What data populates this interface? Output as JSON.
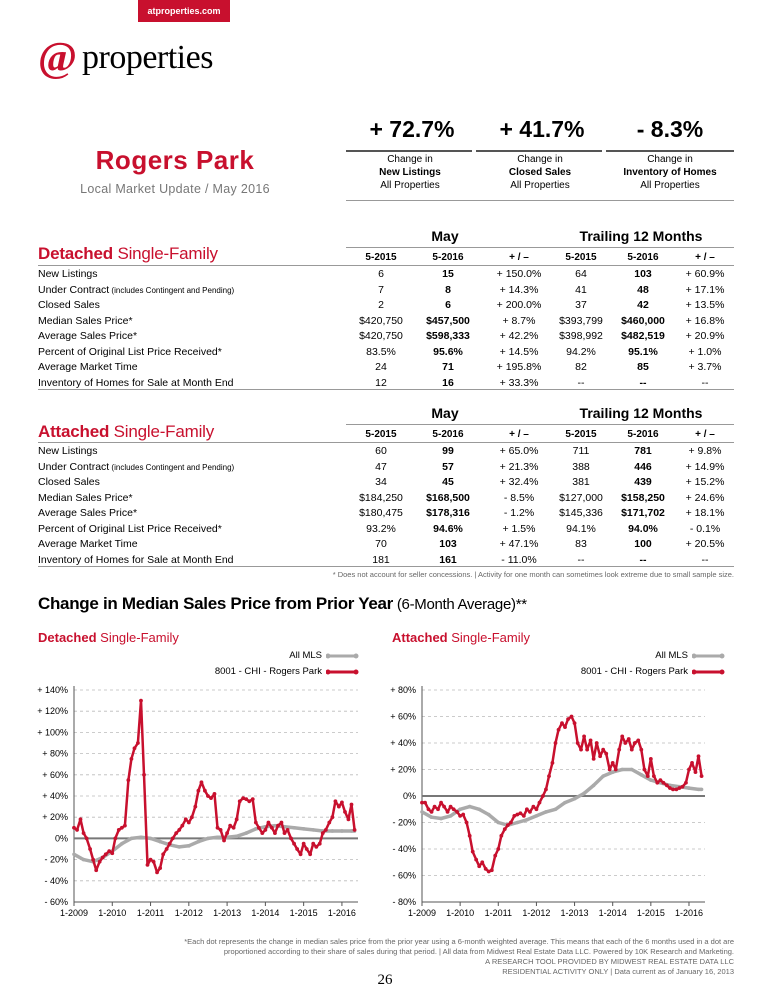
{
  "brand": {
    "site": "atproperties.com",
    "logo_at": "@",
    "logo_word": "properties",
    "red": "#c8102e"
  },
  "area": {
    "title": "Rogers Park",
    "subtitle": "Local Market Update / May 2016"
  },
  "kpis": [
    {
      "value": "+ 72.7%",
      "line1": "Change in",
      "metric": "New Listings",
      "line3": "All Properties"
    },
    {
      "value": "+ 41.7%",
      "line1": "Change in",
      "metric": "Closed Sales",
      "line3": "All Properties"
    },
    {
      "value": "- 8.3%",
      "line1": "Change in",
      "metric": "Inventory of Homes",
      "line3": "All Properties"
    }
  ],
  "groups": {
    "month": "May",
    "trailing": "Trailing 12 Months"
  },
  "columns": [
    "5-2015",
    "5-2016",
    "+ / –",
    "5-2015",
    "5-2016",
    "+ / –"
  ],
  "detached": {
    "title_bold": "Detached",
    "title_rest": " Single-Family",
    "rows": [
      {
        "label": "New Listings",
        "note": "",
        "v": [
          "6",
          "15",
          "+ 150.0%",
          "64",
          "103",
          "+ 60.9%"
        ]
      },
      {
        "label": "Under Contract",
        "note": " (includes Contingent and Pending)",
        "v": [
          "7",
          "8",
          "+ 14.3%",
          "41",
          "48",
          "+ 17.1%"
        ]
      },
      {
        "label": "Closed Sales",
        "note": "",
        "v": [
          "2",
          "6",
          "+ 200.0%",
          "37",
          "42",
          "+ 13.5%"
        ]
      },
      {
        "label": "Median Sales Price*",
        "note": "",
        "v": [
          "$420,750",
          "$457,500",
          "+ 8.7%",
          "$393,799",
          "$460,000",
          "+ 16.8%"
        ]
      },
      {
        "label": "Average Sales Price*",
        "note": "",
        "v": [
          "$420,750",
          "$598,333",
          "+ 42.2%",
          "$398,992",
          "$482,519",
          "+ 20.9%"
        ]
      },
      {
        "label": "Percent of Original List Price Received*",
        "note": "",
        "v": [
          "83.5%",
          "95.6%",
          "+ 14.5%",
          "94.2%",
          "95.1%",
          "+ 1.0%"
        ]
      },
      {
        "label": "Average Market Time",
        "note": "",
        "v": [
          "24",
          "71",
          "+ 195.8%",
          "82",
          "85",
          "+ 3.7%"
        ]
      },
      {
        "label": "Inventory of Homes for Sale at Month End",
        "note": "",
        "v": [
          "12",
          "16",
          "+ 33.3%",
          "--",
          "--",
          "--"
        ]
      }
    ]
  },
  "attached": {
    "title_bold": "Attached",
    "title_rest": " Single-Family",
    "rows": [
      {
        "label": "New Listings",
        "note": "",
        "v": [
          "60",
          "99",
          "+ 65.0%",
          "711",
          "781",
          "+ 9.8%"
        ]
      },
      {
        "label": "Under Contract",
        "note": " (includes Contingent and Pending)",
        "v": [
          "47",
          "57",
          "+ 21.3%",
          "388",
          "446",
          "+ 14.9%"
        ]
      },
      {
        "label": "Closed Sales",
        "note": "",
        "v": [
          "34",
          "45",
          "+ 32.4%",
          "381",
          "439",
          "+ 15.2%"
        ]
      },
      {
        "label": "Median Sales Price*",
        "note": "",
        "v": [
          "$184,250",
          "$168,500",
          "- 8.5%",
          "$127,000",
          "$158,250",
          "+ 24.6%"
        ]
      },
      {
        "label": "Average Sales Price*",
        "note": "",
        "v": [
          "$180,475",
          "$178,316",
          "- 1.2%",
          "$145,336",
          "$171,702",
          "+ 18.1%"
        ]
      },
      {
        "label": "Percent of Original List Price Received*",
        "note": "",
        "v": [
          "93.2%",
          "94.6%",
          "+ 1.5%",
          "94.1%",
          "94.0%",
          "- 0.1%"
        ]
      },
      {
        "label": "Average Market Time",
        "note": "",
        "v": [
          "70",
          "103",
          "+ 47.1%",
          "83",
          "100",
          "+ 20.5%"
        ]
      },
      {
        "label": "Inventory of Homes for Sale at Month End",
        "note": "",
        "v": [
          "181",
          "161",
          "- 11.0%",
          "--",
          "--",
          "--"
        ]
      }
    ]
  },
  "table_footnote": "* Does not account for seller concessions.  |  Activity for one month can sometimes look extreme due to small sample size.",
  "charts_heading": {
    "bold": "Change in Median Sales Price from Prior Year",
    "rest": " (6-Month Average)**"
  },
  "chart_data": [
    {
      "type": "line",
      "subtitle_bold": "Detached",
      "subtitle_rest": " Single-Family",
      "x_ticks": [
        "1-2009",
        "1-2010",
        "1-2011",
        "1-2012",
        "1-2013",
        "1-2014",
        "1-2015",
        "1-2016"
      ],
      "x_range": [
        2009.0,
        2016.42
      ],
      "ylim": [
        -60,
        140
      ],
      "y_ticks": [
        -60,
        -40,
        -20,
        0,
        20,
        40,
        60,
        80,
        100,
        120,
        140
      ],
      "y_tick_labels": [
        "- 60%",
        "- 40%",
        "- 20%",
        "0%",
        "+ 20%",
        "+ 40%",
        "+ 60%",
        "+ 80%",
        "+ 100%",
        "+ 120%",
        "+ 140%"
      ],
      "legend_position": "top-right",
      "series": [
        {
          "name": "All MLS",
          "color": "#aaaaaa",
          "x": [
            2009.0,
            2009.25,
            2009.5,
            2009.75,
            2010.0,
            2010.25,
            2010.5,
            2010.75,
            2011.0,
            2011.25,
            2011.5,
            2011.75,
            2012.0,
            2012.25,
            2012.5,
            2012.75,
            2013.0,
            2013.25,
            2013.5,
            2013.75,
            2014.0,
            2014.25,
            2014.5,
            2014.75,
            2015.0,
            2015.25,
            2015.5,
            2015.75,
            2016.0,
            2016.25,
            2016.33
          ],
          "y": [
            -15,
            -20,
            -22,
            -18,
            -12,
            -5,
            0,
            1,
            0,
            -3,
            -6,
            -8,
            -7,
            -3,
            0,
            1,
            1,
            2,
            5,
            9,
            11,
            12,
            11,
            10,
            9,
            8,
            7,
            7,
            7,
            7,
            7
          ]
        },
        {
          "name": "8001 - CHI - Rogers Park",
          "color": "#c8102e",
          "x": [
            2009.0,
            2009.08,
            2009.17,
            2009.25,
            2009.33,
            2009.42,
            2009.5,
            2009.58,
            2009.67,
            2009.75,
            2009.83,
            2009.92,
            2010.0,
            2010.08,
            2010.17,
            2010.25,
            2010.33,
            2010.42,
            2010.5,
            2010.58,
            2010.67,
            2010.75,
            2010.83,
            2010.92,
            2011.0,
            2011.08,
            2011.17,
            2011.25,
            2011.33,
            2011.42,
            2011.5,
            2011.58,
            2011.67,
            2011.75,
            2011.83,
            2011.92,
            2012.0,
            2012.08,
            2012.17,
            2012.25,
            2012.33,
            2012.42,
            2012.5,
            2012.58,
            2012.67,
            2012.75,
            2012.83,
            2012.92,
            2013.0,
            2013.08,
            2013.17,
            2013.25,
            2013.33,
            2013.42,
            2013.5,
            2013.58,
            2013.67,
            2013.75,
            2013.83,
            2013.92,
            2014.0,
            2014.08,
            2014.17,
            2014.25,
            2014.33,
            2014.42,
            2014.5,
            2014.58,
            2014.67,
            2014.75,
            2014.83,
            2014.92,
            2015.0,
            2015.08,
            2015.17,
            2015.25,
            2015.33,
            2015.42,
            2015.5,
            2015.58,
            2015.67,
            2015.75,
            2015.83,
            2015.92,
            2016.0,
            2016.08,
            2016.17,
            2016.25,
            2016.33
          ],
          "y": [
            10,
            8,
            18,
            5,
            0,
            -10,
            -20,
            -30,
            -22,
            -18,
            -15,
            -12,
            -14,
            0,
            8,
            10,
            12,
            55,
            75,
            85,
            90,
            130,
            60,
            -25,
            -20,
            -22,
            -32,
            -28,
            -15,
            -10,
            -5,
            0,
            5,
            8,
            12,
            18,
            15,
            20,
            30,
            45,
            53,
            45,
            40,
            38,
            42,
            10,
            8,
            -2,
            5,
            12,
            10,
            18,
            35,
            38,
            37,
            35,
            37,
            15,
            10,
            5,
            8,
            15,
            10,
            5,
            12,
            15,
            5,
            8,
            0,
            -5,
            -10,
            -15,
            -5,
            -10,
            -15,
            -5,
            -8,
            -5,
            5,
            8,
            15,
            20,
            35,
            30,
            34,
            25,
            18,
            32,
            8
          ]
        }
      ]
    },
    {
      "type": "line",
      "subtitle_bold": "Attached",
      "subtitle_rest": " Single-Family",
      "x_ticks": [
        "1-2009",
        "1-2010",
        "1-2011",
        "1-2012",
        "1-2013",
        "1-2014",
        "1-2015",
        "1-2016"
      ],
      "x_range": [
        2009.0,
        2016.42
      ],
      "ylim": [
        -80,
        80
      ],
      "y_ticks": [
        -80,
        -60,
        -40,
        -20,
        0,
        20,
        40,
        60,
        80
      ],
      "y_tick_labels": [
        "- 80%",
        "- 60%",
        "- 40%",
        "- 20%",
        "0%",
        "+ 20%",
        "+ 40%",
        "+ 60%",
        "+ 80%"
      ],
      "legend_position": "top-right",
      "series": [
        {
          "name": "All MLS",
          "color": "#aaaaaa",
          "x": [
            2009.0,
            2009.25,
            2009.5,
            2009.75,
            2010.0,
            2010.25,
            2010.5,
            2010.75,
            2011.0,
            2011.25,
            2011.5,
            2011.75,
            2012.0,
            2012.25,
            2012.5,
            2012.75,
            2013.0,
            2013.25,
            2013.5,
            2013.75,
            2014.0,
            2014.25,
            2014.5,
            2014.75,
            2015.0,
            2015.25,
            2015.5,
            2015.75,
            2016.0,
            2016.25,
            2016.33
          ],
          "y": [
            -12,
            -16,
            -17,
            -15,
            -10,
            -8,
            -10,
            -14,
            -20,
            -22,
            -20,
            -18,
            -15,
            -12,
            -10,
            -5,
            -2,
            2,
            8,
            15,
            18,
            20,
            20,
            16,
            12,
            10,
            8,
            7,
            6,
            5,
            5
          ]
        },
        {
          "name": "8001 - CHI - Rogers Park",
          "color": "#c8102e",
          "x": [
            2009.0,
            2009.08,
            2009.17,
            2009.25,
            2009.33,
            2009.42,
            2009.5,
            2009.58,
            2009.67,
            2009.75,
            2009.83,
            2009.92,
            2010.0,
            2010.08,
            2010.17,
            2010.25,
            2010.33,
            2010.42,
            2010.5,
            2010.58,
            2010.67,
            2010.75,
            2010.83,
            2010.92,
            2011.0,
            2011.08,
            2011.17,
            2011.25,
            2011.33,
            2011.42,
            2011.5,
            2011.58,
            2011.67,
            2011.75,
            2011.83,
            2011.92,
            2012.0,
            2012.08,
            2012.17,
            2012.25,
            2012.33,
            2012.42,
            2012.5,
            2012.58,
            2012.67,
            2012.75,
            2012.83,
            2012.92,
            2013.0,
            2013.08,
            2013.17,
            2013.25,
            2013.33,
            2013.42,
            2013.5,
            2013.58,
            2013.67,
            2013.75,
            2013.83,
            2013.92,
            2014.0,
            2014.08,
            2014.17,
            2014.25,
            2014.33,
            2014.42,
            2014.5,
            2014.58,
            2014.67,
            2014.75,
            2014.83,
            2014.92,
            2015.0,
            2015.08,
            2015.17,
            2015.25,
            2015.33,
            2015.42,
            2015.5,
            2015.58,
            2015.67,
            2015.75,
            2015.83,
            2015.92,
            2016.0,
            2016.08,
            2016.17,
            2016.25,
            2016.33
          ],
          "y": [
            -5,
            -5,
            -10,
            -12,
            -8,
            -10,
            -5,
            -8,
            -12,
            -8,
            -10,
            -12,
            -15,
            -14,
            -20,
            -30,
            -42,
            -48,
            -53,
            -50,
            -55,
            -57,
            -56,
            -45,
            -40,
            -30,
            -25,
            -22,
            -20,
            -15,
            -14,
            -13,
            -15,
            -10,
            -12,
            -8,
            -10,
            -5,
            0,
            5,
            15,
            25,
            40,
            50,
            55,
            52,
            58,
            60,
            55,
            40,
            35,
            45,
            35,
            42,
            28,
            40,
            30,
            35,
            32,
            20,
            25,
            20,
            35,
            45,
            40,
            43,
            35,
            40,
            42,
            35,
            20,
            15,
            28,
            15,
            10,
            12,
            10,
            8,
            6,
            5,
            5,
            6,
            7,
            10,
            20,
            25,
            18,
            30,
            15
          ]
        }
      ]
    }
  ],
  "bottom_note": {
    "line1": "*Each dot represents the change in median sales price from the prior year using a 6-month weighted average. This means that each of the 6 months used in a dot are",
    "line2": "proportioned according to their share of sales during that period.  |  All data from Midwest Real Estate Data LLC. Powered by 10K Research and Marketing.",
    "line3": "A RESEARCH TOOL PROVIDED BY MIDWEST REAL ESTATE DATA LLC",
    "line4": "RESIDENTIAL ACTIVITY ONLY  |  Data current as of January 16, 2013"
  },
  "page_number": "26"
}
